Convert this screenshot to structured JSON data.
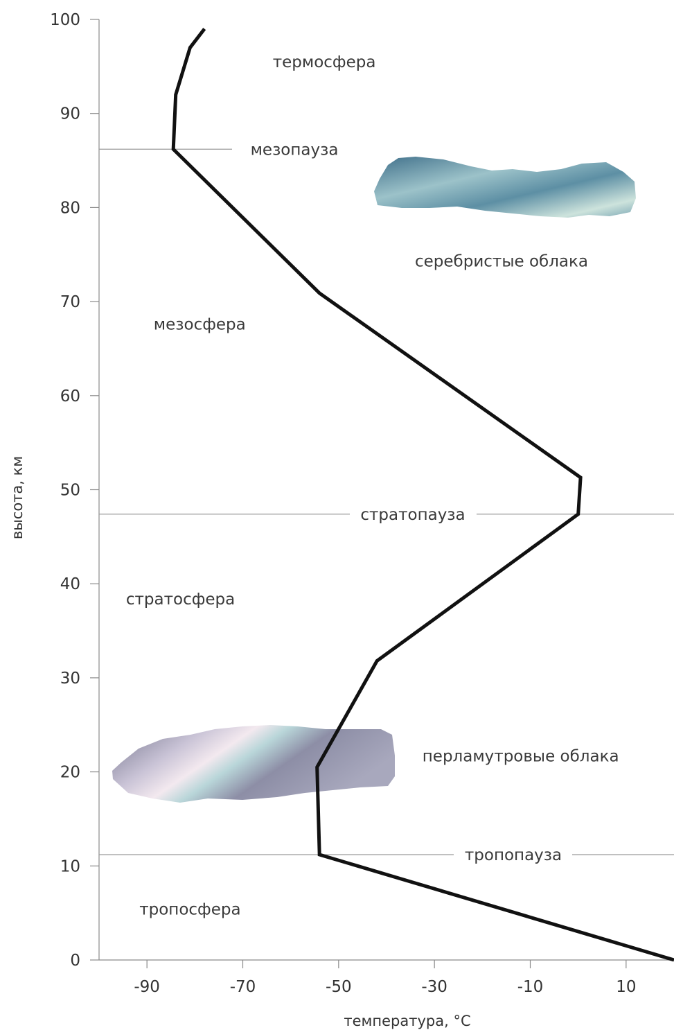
{
  "chart_data": {
    "type": "line",
    "xlabel": "температура, °C",
    "ylabel": "высота, км",
    "xlim": [
      -100,
      20
    ],
    "ylim": [
      0,
      100
    ],
    "xticks": [
      -90,
      -70,
      -50,
      -30,
      -10,
      10
    ],
    "yticks": [
      0,
      10,
      20,
      30,
      40,
      50,
      60,
      70,
      80,
      90,
      100
    ],
    "grid": false,
    "series": [
      {
        "color": "#111111",
        "points": [
          {
            "x": 20,
            "y": 0
          },
          {
            "x": -54,
            "y": 11.2
          },
          {
            "x": -54.5,
            "y": 20.5
          },
          {
            "x": -42,
            "y": 31.8
          },
          {
            "x": 0,
            "y": 47.4
          },
          {
            "x": 0.5,
            "y": 51.3
          },
          {
            "x": -54,
            "y": 70.9
          },
          {
            "x": -84.5,
            "y": 86.2
          },
          {
            "x": -84,
            "y": 92
          },
          {
            "x": -81,
            "y": 97
          },
          {
            "x": -78,
            "y": 99
          }
        ]
      }
    ],
    "pause_lines": [
      {
        "label": "мезопауза",
        "y": 86.2
      },
      {
        "label": "стратопауза",
        "y": 47.4
      },
      {
        "label": "тропопауза",
        "y": 11.2
      }
    ],
    "region_labels": [
      {
        "text": "термосфера",
        "x": -53,
        "y": 95.5
      },
      {
        "text": "серебристые облака",
        "x": -16,
        "y": 74.3
      },
      {
        "text": "мезосфера",
        "x": -79,
        "y": 67.6
      },
      {
        "text": "стратосфера",
        "x": -83,
        "y": 38.4
      },
      {
        "text": "перламутровые облака",
        "x": -12,
        "y": 21.7
      },
      {
        "text": "тропосфера",
        "x": -81,
        "y": 5.4
      }
    ],
    "clouds": [
      {
        "name": "серебристые облака",
        "x_range": [
          -43,
          2
        ],
        "y_range": [
          79.4,
          85.1
        ],
        "colors": [
          "#4f7f98",
          "#8fb9c4",
          "#cfe2dd"
        ]
      },
      {
        "name": "перламутровые облака",
        "x_range": [
          -98,
          -39
        ],
        "y_range": [
          17.2,
          25.3
        ],
        "colors": [
          "#6e6f86",
          "#b7b4c9",
          "#efeaf1"
        ]
      }
    ]
  }
}
